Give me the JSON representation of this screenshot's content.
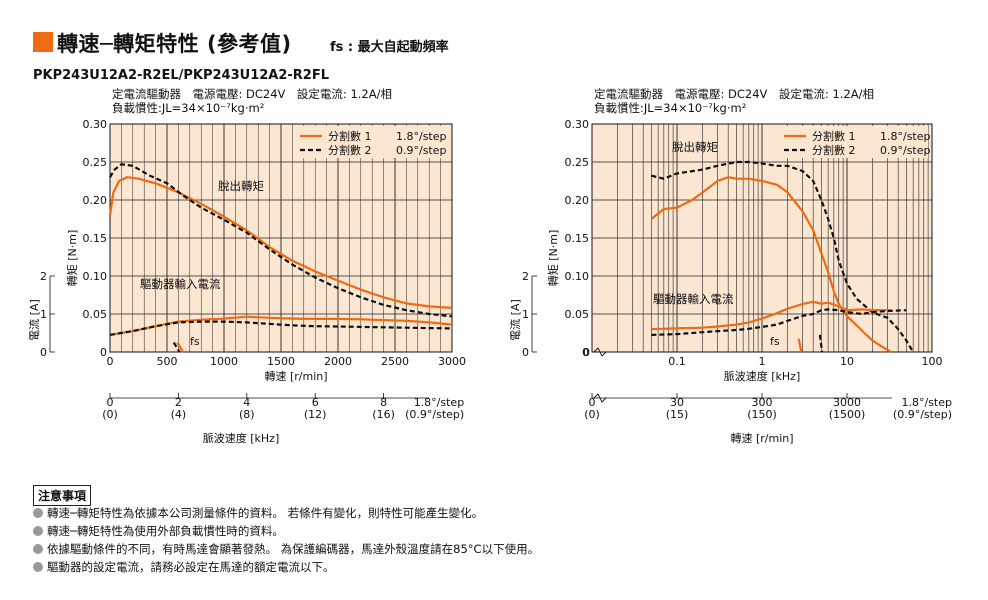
{
  "header": {
    "title": "轉速─轉矩特性 (參考值)",
    "fs_note": "fs : 最大自起動頻率",
    "model": "PKP243U12A2-R2EL/PKP243U12A2-R2FL"
  },
  "colors": {
    "accent": "#ef6a12",
    "plot_bg": "#fbe6d2",
    "series_full_step": "#ef6a12",
    "series_half_step": "#111111"
  },
  "chart_data": [
    {
      "type": "line",
      "id": "linear-speed",
      "conditions": [
        "定電流驅動器　電源電壓: DC24V　設定電流: 1.2A/相",
        "負載慣性:JL=34×10⁻⁷kg·m²"
      ],
      "xlabel": "轉速 [r/min]",
      "xlim": [
        0,
        3000
      ],
      "xticks": [
        "0",
        "500",
        "1000",
        "1500",
        "2000",
        "2500",
        "3000"
      ],
      "ylabel_torque": "轉矩 [N·m]",
      "ylim_torque": [
        0,
        0.3
      ],
      "yticks_torque": [
        "0",
        "0.05",
        "0.10",
        "0.15",
        "0.20",
        "0.25",
        "0.30"
      ],
      "ylabel_current": "電流 [A]",
      "yticks_current": [
        "0",
        "1",
        "2"
      ],
      "secondary_axis": {
        "label": "脈波速度 [kHz]",
        "ticks": [
          {
            "value": "0",
            "sub": "(0)",
            "rpm": 0
          },
          {
            "value": "2",
            "sub": "(4)",
            "rpm": 600
          },
          {
            "value": "4",
            "sub": "(8)",
            "rpm": 1200
          },
          {
            "value": "6",
            "sub": "(12)",
            "rpm": 1800
          },
          {
            "value": "8",
            "sub": "(16)",
            "rpm": 2400
          }
        ],
        "unit": "1.8°/step",
        "unit_sub": "(0.9°/step)"
      },
      "legend": [
        {
          "name": "分割數 1",
          "step": "1.8°/step"
        },
        {
          "name": "分割數 2",
          "step": "0.9°/step"
        }
      ],
      "annotations": {
        "pullout": "脫出轉矩",
        "driver_current": "驅動器輸入電流",
        "fs": "fs"
      },
      "series": [
        {
          "name": "分割數 1",
          "kind": "torque",
          "x": [
            0,
            30,
            80,
            150,
            250,
            400,
            600,
            800,
            1000,
            1200,
            1400,
            1600,
            1800,
            2000,
            2200,
            2400,
            2600,
            2800,
            3000
          ],
          "y": [
            0.18,
            0.21,
            0.225,
            0.23,
            0.228,
            0.222,
            0.21,
            0.195,
            0.178,
            0.16,
            0.138,
            0.12,
            0.106,
            0.094,
            0.082,
            0.072,
            0.064,
            0.06,
            0.058
          ]
        },
        {
          "name": "分割數 2",
          "kind": "torque",
          "x": [
            0,
            40,
            100,
            200,
            350,
            500,
            650,
            800,
            1000,
            1200,
            1400,
            1600,
            1800,
            2000,
            2200,
            2400,
            2600,
            2800,
            3000
          ],
          "y": [
            0.23,
            0.24,
            0.247,
            0.245,
            0.232,
            0.222,
            0.205,
            0.19,
            0.174,
            0.157,
            0.135,
            0.115,
            0.098,
            0.084,
            0.072,
            0.062,
            0.055,
            0.05,
            0.047
          ]
        },
        {
          "name": "分割數 1",
          "kind": "current",
          "x": [
            0,
            200,
            400,
            600,
            800,
            1000,
            1200,
            1400,
            1600,
            1800,
            2000,
            2200,
            2400,
            2600,
            2800,
            3000
          ],
          "y": [
            0.45,
            0.55,
            0.68,
            0.8,
            0.85,
            0.88,
            0.93,
            0.9,
            0.88,
            0.87,
            0.87,
            0.86,
            0.84,
            0.82,
            0.78,
            0.72
          ]
        },
        {
          "name": "分割數 2",
          "kind": "current",
          "x": [
            0,
            200,
            400,
            600,
            800,
            1000,
            1200,
            1400,
            1600,
            1800,
            2000,
            2200,
            2400,
            2600,
            2800,
            3000
          ],
          "y": [
            0.45,
            0.55,
            0.68,
            0.78,
            0.8,
            0.8,
            0.78,
            0.74,
            0.7,
            0.68,
            0.67,
            0.66,
            0.65,
            0.64,
            0.63,
            0.62
          ]
        },
        {
          "name": "fs 分割數 1",
          "kind": "current",
          "x": [
            590,
            640
          ],
          "y": [
            0.25,
            0.0
          ]
        },
        {
          "name": "fs 分割數 2",
          "kind": "current",
          "x": [
            560,
            610
          ],
          "y": [
            0.25,
            0.0
          ]
        }
      ]
    },
    {
      "type": "line",
      "id": "log-pulse",
      "conditions": [
        "定電流驅動器　電源電壓: DC24V　設定電流: 1.2A/相",
        "負載慣性:JL=34×10⁻⁷kg·m²"
      ],
      "xlabel": "脈波速度 [kHz]",
      "xscale": "log",
      "xlim": [
        0.01,
        100
      ],
      "xticks": [
        "0.1",
        "1",
        "10",
        "100"
      ],
      "x_origin_label": "0",
      "ylabel_torque": "轉矩 [N·m]",
      "ylim_torque": [
        0,
        0.3
      ],
      "yticks_torque": [
        "0",
        "0.05",
        "0.10",
        "0.15",
        "0.20",
        "0.25",
        "0.30"
      ],
      "ylabel_current": "電流 [A]",
      "yticks_current": [
        "0",
        "1",
        "2"
      ],
      "secondary_axis": {
        "label": "轉速 [r/min]",
        "ticks": [
          {
            "value": "0",
            "sub": "(0)",
            "khz": null
          },
          {
            "value": "30",
            "sub": "(15)",
            "khz": 0.1
          },
          {
            "value": "300",
            "sub": "(150)",
            "khz": 1
          },
          {
            "value": "3000",
            "sub": "(1500)",
            "khz": 10
          }
        ],
        "unit": "1.8°/step",
        "unit_sub": "(0.9°/step)"
      },
      "legend": [
        {
          "name": "分割數 1",
          "step": "1.8°/step"
        },
        {
          "name": "分割數 2",
          "step": "0.9°/step"
        }
      ],
      "annotations": {
        "pullout": "脫出轉矩",
        "driver_current": "驅動器輸入電流",
        "fs": "fs"
      },
      "series": [
        {
          "name": "分割數 1",
          "kind": "torque",
          "x": [
            0.05,
            0.07,
            0.1,
            0.15,
            0.2,
            0.3,
            0.4,
            0.5,
            0.7,
            1.0,
            1.5,
            2.0,
            3.0,
            4.0,
            5.0,
            6.0,
            7.0,
            8.0,
            10.0,
            13.0,
            16.0,
            20.0,
            25.0,
            33.0
          ],
          "y": [
            0.175,
            0.188,
            0.19,
            0.2,
            0.21,
            0.225,
            0.23,
            0.228,
            0.228,
            0.225,
            0.22,
            0.21,
            0.185,
            0.16,
            0.13,
            0.105,
            0.08,
            0.063,
            0.047,
            0.035,
            0.025,
            0.015,
            0.008,
            0.0
          ]
        },
        {
          "name": "分割數 2",
          "kind": "torque",
          "x": [
            0.05,
            0.07,
            0.1,
            0.2,
            0.3,
            0.5,
            0.7,
            1.0,
            1.5,
            2.0,
            3.0,
            4.0,
            5.0,
            6.0,
            7.0,
            8.0,
            10.0,
            13.0,
            20.0,
            30.0,
            40.0,
            50.0,
            60.0
          ],
          "y": [
            0.232,
            0.228,
            0.235,
            0.24,
            0.245,
            0.25,
            0.25,
            0.248,
            0.245,
            0.245,
            0.238,
            0.225,
            0.2,
            0.175,
            0.15,
            0.12,
            0.09,
            0.07,
            0.052,
            0.045,
            0.03,
            0.015,
            0.0
          ]
        },
        {
          "name": "分割數 1",
          "kind": "current",
          "x": [
            0.05,
            0.1,
            0.2,
            0.3,
            0.5,
            0.7,
            1.0,
            1.5,
            2.0,
            3.0,
            4.0,
            5.0,
            6.0,
            8.0,
            10.0,
            15.0,
            20.0,
            33.0
          ],
          "y": [
            0.6,
            0.62,
            0.64,
            0.67,
            0.72,
            0.78,
            0.88,
            1.02,
            1.14,
            1.26,
            1.32,
            1.27,
            1.3,
            1.2,
            1.1,
            1.12,
            1.1,
            1.1
          ]
        },
        {
          "name": "分割數 2",
          "kind": "current",
          "x": [
            0.05,
            0.1,
            0.2,
            0.3,
            0.5,
            0.7,
            1.0,
            1.5,
            2.0,
            3.0,
            4.0,
            5.0,
            6.0,
            8.0,
            10.0,
            15.0,
            20.0,
            30.0,
            50.0
          ],
          "y": [
            0.45,
            0.47,
            0.52,
            0.55,
            0.58,
            0.61,
            0.66,
            0.72,
            0.82,
            0.95,
            1.0,
            1.1,
            1.12,
            1.1,
            1.05,
            1.0,
            1.05,
            1.08,
            1.1
          ]
        },
        {
          "name": "fs 分割數 1",
          "kind": "current",
          "x": [
            2.7,
            2.9
          ],
          "y": [
            0.35,
            0.0
          ]
        },
        {
          "name": "fs 分割數 2",
          "kind": "current",
          "x": [
            4.8,
            5.1
          ],
          "y": [
            0.45,
            0.0
          ]
        }
      ]
    }
  ],
  "notes": {
    "title": "注意事項",
    "items": [
      "轉速─轉矩特性為依據本公司測量條件的資料。 若條件有變化，則特性可能產生變化。",
      "轉速─轉矩特性為使用外部負載慣性時的資料。",
      "依據驅動條件的不同，有時馬達會顯著發熱。 為保護編碼器，馬達外殼溫度請在85°C以下使用。",
      "驅動器的設定電流，請務必設定在馬達的額定電流以下。"
    ]
  }
}
